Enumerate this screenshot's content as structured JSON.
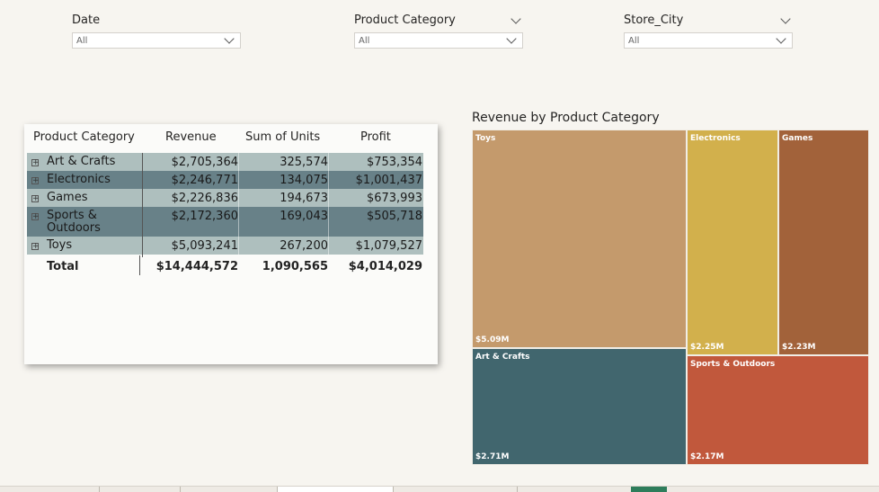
{
  "slicers": [
    {
      "title": "Date",
      "value": "All"
    },
    {
      "title": "Product Category",
      "value": "All"
    },
    {
      "title": "Store_City",
      "value": "All"
    }
  ],
  "table": {
    "headers": [
      "Product Category",
      "Revenue",
      "Sum of Units",
      "Profit"
    ],
    "rows": [
      {
        "category": "Art & Crafts",
        "revenue": "$2,705,364",
        "units": "325,574",
        "profit": "$753,354"
      },
      {
        "category": "Electronics",
        "revenue": "$2,246,771",
        "units": "134,075",
        "profit": "$1,001,437"
      },
      {
        "category": "Games",
        "revenue": "$2,226,836",
        "units": "194,673",
        "profit": "$673,993"
      },
      {
        "category": "Sports & Outdoors",
        "revenue": "$2,172,360",
        "units": "169,043",
        "profit": "$505,718"
      },
      {
        "category": "Toys",
        "revenue": "$5,093,241",
        "units": "267,200",
        "profit": "$1,079,527"
      }
    ],
    "row_colors": [
      "#aebfbe",
      "#688188",
      "#aebfbe",
      "#688188",
      "#aebfbe"
    ],
    "total": {
      "label": "Total",
      "revenue": "$14,444,572",
      "units": "1,090,565",
      "profit": "$4,014,029"
    },
    "expand_symbol": "+"
  },
  "treemap": {
    "title": "Revenue by Product Category",
    "tiles": [
      {
        "category": "Toys",
        "value_label": "$5.09M",
        "color": "#c49a6c"
      },
      {
        "category": "Electronics",
        "value_label": "$2.25M",
        "color": "#d2b04c"
      },
      {
        "category": "Games",
        "value_label": "$2.23M",
        "color": "#a2623a"
      },
      {
        "category": "Art & Crafts",
        "value_label": "$2.71M",
        "color": "#41666e"
      },
      {
        "category": "Sports & Outdoors",
        "value_label": "$2.17M",
        "color": "#c1583c"
      }
    ]
  },
  "chart_data": {
    "type": "treemap",
    "title": "Revenue by Product Category",
    "categories": [
      "Toys",
      "Art & Crafts",
      "Electronics",
      "Games",
      "Sports & Outdoors"
    ],
    "values": [
      5093241,
      2705364,
      2246771,
      2226836,
      2172360
    ],
    "value_labels": [
      "$5.09M",
      "$2.71M",
      "$2.25M",
      "$2.23M",
      "$2.17M"
    ]
  }
}
